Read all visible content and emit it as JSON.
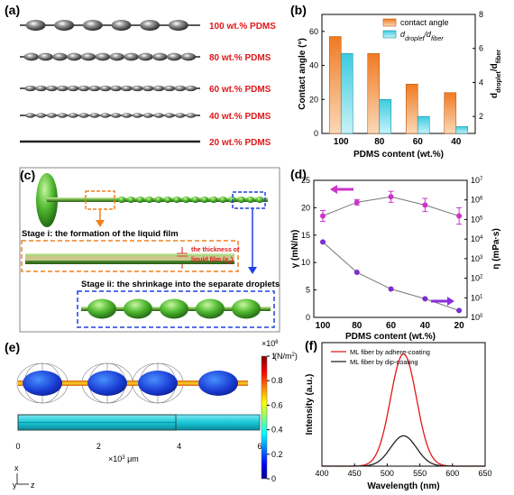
{
  "panels": {
    "a": {
      "label": "(a)",
      "fibers": [
        {
          "text": "100 wt.% PDMS",
          "droplets": 6,
          "size": 1.0
        },
        {
          "text": "80 wt.% PDMS",
          "droplets": 12,
          "size": 0.6
        },
        {
          "text": "60 wt.% PDMS",
          "droplets": 16,
          "size": 0.32
        },
        {
          "text": "40 wt.% PDMS",
          "droplets": 16,
          "size": 0.22
        },
        {
          "text": "20 wt.% PDMS",
          "droplets": 0,
          "size": 0
        }
      ]
    },
    "c": {
      "label": "(c)",
      "stage1": "Stage i: the formation of the liquid film",
      "thickness_line1": "the thickness of",
      "thickness_line2": "liquid film (e",
      "thickness_sub": "0",
      "thickness_end": ")",
      "stage2": "Stage ii: the shrinkage into the separate droplets"
    },
    "e": {
      "label": "(e)",
      "colorbar_exp": "×10",
      "colorbar_exp_sup": "6",
      "colorbar_unit": "(N/m",
      "colorbar_unit_sup": "2",
      "colorbar_unit_end": ")",
      "colorbar_ticks": [
        "1",
        "0.8",
        "0.6",
        "0.4",
        "0.2",
        "0"
      ],
      "x_ticks": [
        "0",
        "2",
        "4",
        "6"
      ],
      "x_unit_prefix": "×10",
      "x_unit_sup": "3",
      "x_unit_mu": " μm",
      "axis_x": "x",
      "axis_y": "y",
      "axis_z": "z"
    }
  },
  "chart_data": [
    {
      "id": "b",
      "label": "(b)",
      "type": "bar",
      "categories": [
        "100",
        "80",
        "60",
        "40"
      ],
      "xlabel": "PDMS content (wt.%)",
      "ylabel": "Contact angle (°)",
      "y2label_parts": [
        "d",
        "droplet",
        "/d",
        "fiber"
      ],
      "ylim": [
        0,
        70
      ],
      "yticks": [
        0,
        20,
        40,
        60
      ],
      "y2lim": [
        1,
        8
      ],
      "y2ticks": [
        2,
        4,
        6,
        8
      ],
      "series": [
        {
          "name": "contact angle",
          "axis": "left",
          "color": "#f0802f",
          "values": [
            57,
            47,
            29,
            24
          ]
        },
        {
          "name_parts": [
            "d",
            "droplet",
            "/d",
            "fiber"
          ],
          "axis": "right",
          "color": "#46d0e5",
          "values": [
            5.7,
            3.0,
            2.0,
            1.4
          ]
        }
      ]
    },
    {
      "id": "d",
      "label": "(d)",
      "type": "scatter",
      "x": [
        100,
        80,
        60,
        40,
        20
      ],
      "xticks": [
        "100",
        "80",
        "60",
        "40",
        "20"
      ],
      "xlabel": "PDMS content (wt.%)",
      "ylabel": "γ (mN/m)",
      "y2label": "η (mPa·s)",
      "ylim": [
        0,
        25
      ],
      "yticks": [
        0,
        5,
        10,
        15,
        20,
        25
      ],
      "y2log_range": [
        0,
        7
      ],
      "y2ticks_exp": [
        0,
        1,
        2,
        3,
        4,
        5,
        6,
        7
      ],
      "series": [
        {
          "name": "γ",
          "axis": "left",
          "color": "#cc33cc",
          "values": [
            18.5,
            21,
            22,
            20.5,
            18.5
          ],
          "errors": [
            1.0,
            0.5,
            1.0,
            1.2,
            1.5
          ]
        },
        {
          "name": "η",
          "axis": "right",
          "color": "#7a2fd0",
          "values_log10": [
            3.85,
            2.3,
            1.45,
            0.95,
            0.35
          ]
        }
      ]
    },
    {
      "id": "f",
      "label": "(f)",
      "type": "line",
      "xlabel": "Wavelength (nm)",
      "ylabel": "Intensity (a.u.)",
      "xlim": [
        400,
        650
      ],
      "xticks": [
        400,
        450,
        500,
        550,
        600,
        650
      ],
      "ylim": [
        0,
        1.1
      ],
      "series": [
        {
          "name": "ML fiber by adhere-coating",
          "color": "#e0181a",
          "peak": 525,
          "amplitude": 1.0,
          "width": 28
        },
        {
          "name": "ML fiber by dip-coating",
          "color": "#222222",
          "peak": 525,
          "amplitude": 0.27,
          "width": 28
        }
      ]
    }
  ]
}
